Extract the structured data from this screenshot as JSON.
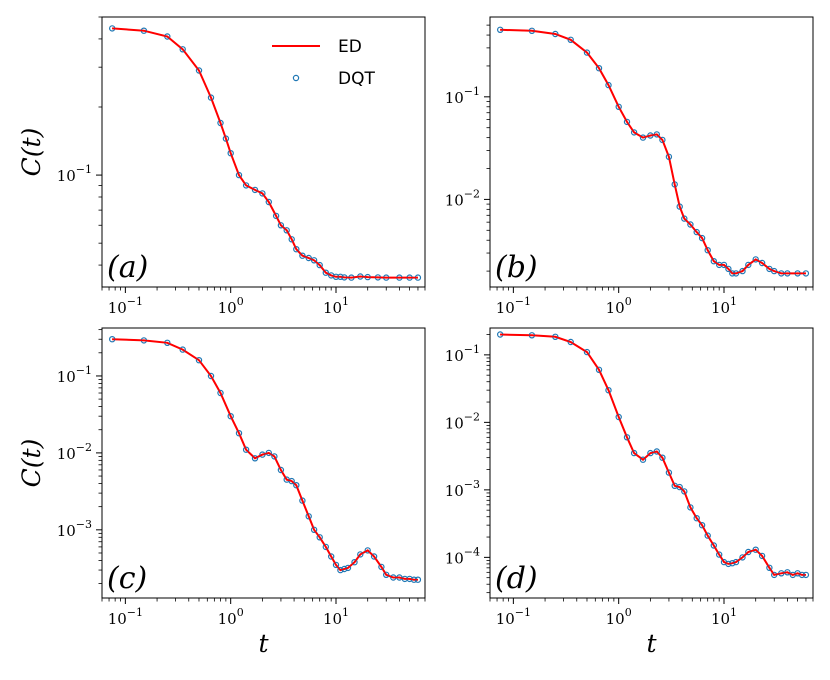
{
  "colors": {
    "ed": "#ff0000",
    "dqt": "#1f77b4"
  },
  "legend": [
    {
      "label": "ED",
      "marker": "line"
    },
    {
      "label": "DQT",
      "marker": "circle"
    }
  ],
  "chart_data": [
    {
      "type": "line",
      "panel_label": "(a)",
      "xlabel": "",
      "ylabel": "C(t)",
      "xscale": "log",
      "yscale": "log",
      "xlim": [
        0.06,
        70
      ],
      "ylim": [
        0.032,
        0.5
      ],
      "xticks": [
        {
          "base": "10",
          "exp": "−1",
          "value": 0.1
        },
        {
          "base": "10",
          "exp": "0",
          "value": 1
        },
        {
          "base": "10",
          "exp": "1",
          "value": 10
        }
      ],
      "yticks": [
        {
          "base": "10",
          "exp": "−1",
          "value": 0.1
        }
      ],
      "legend_position": "top-right",
      "series": [
        {
          "name": "ED",
          "style": "line",
          "x": [
            0.075,
            0.15,
            0.25,
            0.35,
            0.5,
            0.65,
            0.8,
            0.9,
            1.0,
            1.2,
            1.4,
            1.7,
            2.0,
            2.3,
            2.7,
            3.0,
            3.4,
            3.8,
            4.2,
            4.8,
            5.5,
            6.2,
            7.0,
            8.0,
            9.0,
            10,
            11,
            12,
            14,
            17,
            20,
            25,
            30,
            40,
            50,
            60
          ],
          "y": [
            0.445,
            0.435,
            0.41,
            0.36,
            0.29,
            0.22,
            0.17,
            0.145,
            0.125,
            0.1,
            0.09,
            0.086,
            0.083,
            0.076,
            0.066,
            0.06,
            0.057,
            0.052,
            0.047,
            0.044,
            0.043,
            0.042,
            0.04,
            0.037,
            0.036,
            0.0355,
            0.0355,
            0.0353,
            0.0352,
            0.0356,
            0.0354,
            0.0353,
            0.0352,
            0.0352,
            0.0352,
            0.0352
          ]
        },
        {
          "name": "DQT",
          "style": "markers",
          "x": [
            0.075,
            0.15,
            0.25,
            0.35,
            0.5,
            0.65,
            0.8,
            0.9,
            1.0,
            1.2,
            1.4,
            1.7,
            2.0,
            2.3,
            2.7,
            3.0,
            3.4,
            3.8,
            4.2,
            4.8,
            5.5,
            6.2,
            7.0,
            8.0,
            9.0,
            10,
            11,
            12,
            14,
            17,
            20,
            25,
            30,
            40,
            50,
            60
          ],
          "y": [
            0.445,
            0.435,
            0.41,
            0.36,
            0.29,
            0.22,
            0.17,
            0.145,
            0.125,
            0.1,
            0.09,
            0.086,
            0.083,
            0.076,
            0.066,
            0.06,
            0.057,
            0.052,
            0.047,
            0.044,
            0.043,
            0.042,
            0.04,
            0.037,
            0.036,
            0.0355,
            0.0355,
            0.0353,
            0.0352,
            0.0356,
            0.0354,
            0.0353,
            0.0352,
            0.0352,
            0.0352,
            0.0352
          ]
        }
      ]
    },
    {
      "type": "line",
      "panel_label": "(b)",
      "xlabel": "",
      "ylabel": "",
      "xscale": "log",
      "yscale": "log",
      "xlim": [
        0.06,
        70
      ],
      "ylim": [
        0.0014,
        0.6
      ],
      "xticks": [
        {
          "base": "10",
          "exp": "−1",
          "value": 0.1
        },
        {
          "base": "10",
          "exp": "0",
          "value": 1
        },
        {
          "base": "10",
          "exp": "1",
          "value": 10
        }
      ],
      "yticks": [
        {
          "base": "10",
          "exp": "−2",
          "value": 0.01
        },
        {
          "base": "10",
          "exp": "−1",
          "value": 0.1
        }
      ],
      "series": [
        {
          "name": "ED",
          "style": "line",
          "x": [
            0.075,
            0.15,
            0.25,
            0.35,
            0.5,
            0.65,
            0.8,
            1.0,
            1.2,
            1.4,
            1.7,
            2.0,
            2.3,
            2.6,
            3.0,
            3.4,
            3.8,
            4.2,
            4.8,
            5.5,
            6.2,
            7.0,
            8.0,
            9.0,
            10,
            11,
            12,
            13,
            15,
            17,
            20,
            23,
            27,
            30,
            35,
            40,
            50,
            60
          ],
          "y": [
            0.45,
            0.44,
            0.41,
            0.36,
            0.27,
            0.19,
            0.13,
            0.08,
            0.057,
            0.045,
            0.04,
            0.042,
            0.043,
            0.038,
            0.026,
            0.014,
            0.0085,
            0.0065,
            0.0057,
            0.0048,
            0.0042,
            0.0032,
            0.0025,
            0.0023,
            0.0023,
            0.0021,
            0.0019,
            0.0019,
            0.002,
            0.0023,
            0.0026,
            0.0024,
            0.0021,
            0.002,
            0.0019,
            0.0019,
            0.0019,
            0.0019
          ]
        },
        {
          "name": "DQT",
          "style": "markers",
          "x": [
            0.075,
            0.15,
            0.25,
            0.35,
            0.5,
            0.65,
            0.8,
            1.0,
            1.2,
            1.4,
            1.7,
            2.0,
            2.3,
            2.6,
            3.0,
            3.4,
            3.8,
            4.2,
            4.8,
            5.5,
            6.2,
            7.0,
            8.0,
            9.0,
            10,
            11,
            12,
            13,
            15,
            17,
            20,
            23,
            27,
            30,
            35,
            40,
            50,
            60
          ],
          "y": [
            0.45,
            0.44,
            0.41,
            0.36,
            0.27,
            0.19,
            0.13,
            0.08,
            0.057,
            0.045,
            0.04,
            0.042,
            0.043,
            0.038,
            0.026,
            0.014,
            0.0085,
            0.0065,
            0.0057,
            0.0048,
            0.0042,
            0.0032,
            0.0025,
            0.0023,
            0.0023,
            0.0021,
            0.0019,
            0.0019,
            0.002,
            0.0023,
            0.0026,
            0.0024,
            0.0021,
            0.002,
            0.0019,
            0.0019,
            0.0019,
            0.0019
          ]
        }
      ]
    },
    {
      "type": "line",
      "panel_label": "(c)",
      "xlabel": "t",
      "ylabel": "C(t)",
      "xscale": "log",
      "yscale": "log",
      "xlim": [
        0.06,
        70
      ],
      "ylim": [
        0.00013,
        0.42
      ],
      "xticks": [
        {
          "base": "10",
          "exp": "−1",
          "value": 0.1
        },
        {
          "base": "10",
          "exp": "0",
          "value": 1
        },
        {
          "base": "10",
          "exp": "1",
          "value": 10
        }
      ],
      "yticks": [
        {
          "base": "10",
          "exp": "−3",
          "value": 0.001
        },
        {
          "base": "10",
          "exp": "−2",
          "value": 0.01
        },
        {
          "base": "10",
          "exp": "−1",
          "value": 0.1
        }
      ],
      "series": [
        {
          "name": "ED",
          "style": "line",
          "x": [
            0.075,
            0.15,
            0.25,
            0.35,
            0.5,
            0.65,
            0.8,
            1.0,
            1.2,
            1.4,
            1.7,
            2.0,
            2.3,
            2.6,
            3.0,
            3.4,
            3.8,
            4.2,
            4.8,
            5.5,
            6.2,
            7.0,
            8.0,
            9.0,
            10,
            11,
            12,
            13,
            15,
            17,
            20,
            23,
            27,
            30,
            35,
            40,
            45,
            50,
            55,
            60
          ],
          "y": [
            0.3,
            0.29,
            0.27,
            0.22,
            0.16,
            0.1,
            0.06,
            0.03,
            0.018,
            0.011,
            0.0085,
            0.0095,
            0.01,
            0.009,
            0.006,
            0.0045,
            0.0043,
            0.0038,
            0.0024,
            0.0015,
            0.001,
            0.0008,
            0.0006,
            0.00045,
            0.00035,
            0.0003,
            0.00031,
            0.00032,
            0.00038,
            0.00048,
            0.00054,
            0.00045,
            0.00033,
            0.00026,
            0.00024,
            0.00024,
            0.00023,
            0.00023,
            0.000225,
            0.000225
          ]
        },
        {
          "name": "DQT",
          "style": "markers",
          "x": [
            0.075,
            0.15,
            0.25,
            0.35,
            0.5,
            0.65,
            0.8,
            1.0,
            1.2,
            1.4,
            1.7,
            2.0,
            2.3,
            2.6,
            3.0,
            3.4,
            3.8,
            4.2,
            4.8,
            5.5,
            6.2,
            7.0,
            8.0,
            9.0,
            10,
            11,
            12,
            13,
            15,
            17,
            20,
            23,
            27,
            30,
            35,
            40,
            45,
            50,
            55,
            60
          ],
          "y": [
            0.3,
            0.29,
            0.27,
            0.22,
            0.16,
            0.1,
            0.06,
            0.03,
            0.018,
            0.011,
            0.0085,
            0.0095,
            0.01,
            0.009,
            0.006,
            0.0045,
            0.0043,
            0.0038,
            0.0024,
            0.0015,
            0.001,
            0.0008,
            0.0006,
            0.00045,
            0.00035,
            0.0003,
            0.00031,
            0.00032,
            0.00038,
            0.00048,
            0.00054,
            0.00045,
            0.00033,
            0.00026,
            0.00024,
            0.00024,
            0.00023,
            0.00023,
            0.000225,
            0.000225
          ]
        }
      ]
    },
    {
      "type": "line",
      "panel_label": "(d)",
      "xlabel": "t",
      "ylabel": "",
      "xscale": "log",
      "yscale": "log",
      "xlim": [
        0.06,
        70
      ],
      "ylim": [
        2.5e-05,
        0.25
      ],
      "xticks": [
        {
          "base": "10",
          "exp": "−1",
          "value": 0.1
        },
        {
          "base": "10",
          "exp": "0",
          "value": 1
        },
        {
          "base": "10",
          "exp": "1",
          "value": 10
        }
      ],
      "yticks": [
        {
          "base": "10",
          "exp": "−4",
          "value": 0.0001
        },
        {
          "base": "10",
          "exp": "−3",
          "value": 0.001
        },
        {
          "base": "10",
          "exp": "−2",
          "value": 0.01
        },
        {
          "base": "10",
          "exp": "−1",
          "value": 0.1
        }
      ],
      "series": [
        {
          "name": "ED",
          "style": "line",
          "x": [
            0.075,
            0.15,
            0.25,
            0.35,
            0.5,
            0.65,
            0.8,
            1.0,
            1.2,
            1.4,
            1.7,
            2.0,
            2.3,
            2.6,
            3.0,
            3.4,
            3.8,
            4.2,
            4.8,
            5.5,
            6.2,
            7.0,
            8.0,
            9.0,
            10,
            11,
            12,
            13,
            15,
            17,
            20,
            23,
            27,
            30,
            35,
            40,
            45,
            50,
            55,
            60
          ],
          "y": [
            0.2,
            0.195,
            0.185,
            0.155,
            0.11,
            0.06,
            0.03,
            0.012,
            0.006,
            0.0035,
            0.0028,
            0.0035,
            0.0037,
            0.003,
            0.0018,
            0.00115,
            0.0011,
            0.00095,
            0.00055,
            0.00038,
            0.0003,
            0.00021,
            0.00015,
            0.00011,
            8.5e-05,
            8e-05,
            8.2e-05,
            8.5e-05,
            0.0001,
            0.00012,
            0.00013,
            0.000105,
            7e-05,
            5.5e-05,
            5.8e-05,
            6e-05,
            5.5e-05,
            5.8e-05,
            5.5e-05,
            5.5e-05
          ]
        },
        {
          "name": "DQT",
          "style": "markers",
          "x": [
            0.075,
            0.15,
            0.25,
            0.35,
            0.5,
            0.65,
            0.8,
            1.0,
            1.2,
            1.4,
            1.7,
            2.0,
            2.3,
            2.6,
            3.0,
            3.4,
            3.8,
            4.2,
            4.8,
            5.5,
            6.2,
            7.0,
            8.0,
            9.0,
            10,
            11,
            12,
            13,
            15,
            17,
            20,
            23,
            27,
            30,
            35,
            40,
            45,
            50,
            55,
            60
          ],
          "y": [
            0.2,
            0.195,
            0.185,
            0.155,
            0.11,
            0.06,
            0.03,
            0.012,
            0.006,
            0.0035,
            0.0028,
            0.0035,
            0.0037,
            0.003,
            0.0018,
            0.00115,
            0.0011,
            0.00095,
            0.00055,
            0.00038,
            0.0003,
            0.00021,
            0.00015,
            0.00011,
            8.5e-05,
            8e-05,
            8.2e-05,
            8.5e-05,
            0.0001,
            0.00012,
            0.00013,
            0.000105,
            7e-05,
            5.5e-05,
            5.8e-05,
            6e-05,
            5.5e-05,
            5.8e-05,
            5.5e-05,
            5.5e-05
          ]
        }
      ]
    }
  ]
}
